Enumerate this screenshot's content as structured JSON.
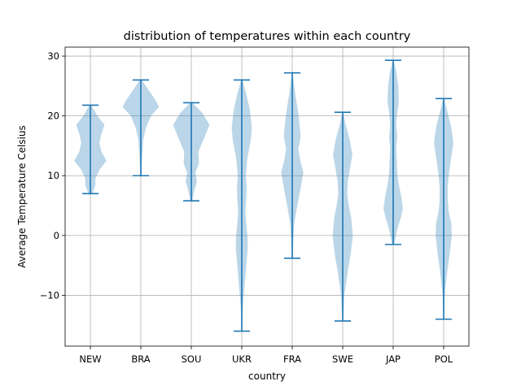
{
  "chart_data": {
    "type": "violin",
    "title": "distribution of temperatures within each country",
    "xlabel": "country",
    "ylabel": "Average Temperature Celsius",
    "ylim": [
      -18.5,
      31.5
    ],
    "yticks": [
      -10,
      0,
      10,
      20,
      30
    ],
    "ytick_labels": [
      "−10",
      "0",
      "10",
      "20",
      "30"
    ],
    "grid": true,
    "colors": {
      "body": "#1f77b4",
      "body_alpha": 0.3,
      "line": "#1f77b4",
      "grid": "#b0b0b0"
    },
    "categories": [
      "NEW",
      "BRA",
      "SOU",
      "UKR",
      "FRA",
      "SWE",
      "JAP",
      "POL"
    ],
    "series": [
      {
        "category": "NEW",
        "min": 7.0,
        "max": 21.8,
        "density": [
          [
            7.0,
            0.1
          ],
          [
            8.5,
            0.25
          ],
          [
            9.5,
            0.25
          ],
          [
            11.0,
            0.45
          ],
          [
            12.5,
            0.8
          ],
          [
            14.0,
            0.55
          ],
          [
            15.5,
            0.45
          ],
          [
            17.0,
            0.55
          ],
          [
            18.5,
            0.7
          ],
          [
            20.0,
            0.35
          ],
          [
            21.8,
            0.05
          ]
        ]
      },
      {
        "category": "BRA",
        "min": 10.0,
        "max": 26.0,
        "density": [
          [
            10.0,
            0.03
          ],
          [
            12.0,
            0.05
          ],
          [
            14.0,
            0.08
          ],
          [
            16.0,
            0.12
          ],
          [
            18.0,
            0.25
          ],
          [
            20.0,
            0.5
          ],
          [
            21.5,
            0.9
          ],
          [
            22.5,
            0.75
          ],
          [
            23.5,
            0.55
          ],
          [
            24.5,
            0.35
          ],
          [
            26.0,
            0.05
          ]
        ]
      },
      {
        "category": "SOU",
        "min": 5.8,
        "max": 22.2,
        "density": [
          [
            5.8,
            0.05
          ],
          [
            7.5,
            0.15
          ],
          [
            9.0,
            0.28
          ],
          [
            10.5,
            0.2
          ],
          [
            12.0,
            0.38
          ],
          [
            14.0,
            0.35
          ],
          [
            16.0,
            0.6
          ],
          [
            18.5,
            0.9
          ],
          [
            20.5,
            0.55
          ],
          [
            22.2,
            0.05
          ]
        ]
      },
      {
        "category": "UKR",
        "min": -16.0,
        "max": 26.0,
        "density": [
          [
            -16.0,
            0.02
          ],
          [
            -12.0,
            0.05
          ],
          [
            -8.0,
            0.15
          ],
          [
            -5.0,
            0.22
          ],
          [
            -2.0,
            0.3
          ],
          [
            0.0,
            0.28
          ],
          [
            2.0,
            0.22
          ],
          [
            4.0,
            0.18
          ],
          [
            6.0,
            0.22
          ],
          [
            8.0,
            0.24
          ],
          [
            10.0,
            0.2
          ],
          [
            13.0,
            0.28
          ],
          [
            16.0,
            0.45
          ],
          [
            18.0,
            0.5
          ],
          [
            21.0,
            0.4
          ],
          [
            24.0,
            0.2
          ],
          [
            26.0,
            0.03
          ]
        ]
      },
      {
        "category": "FRA",
        "min": -3.8,
        "max": 27.2,
        "density": [
          [
            -3.8,
            0.02
          ],
          [
            -1.0,
            0.05
          ],
          [
            2.0,
            0.1
          ],
          [
            5.0,
            0.25
          ],
          [
            8.0,
            0.42
          ],
          [
            10.5,
            0.55
          ],
          [
            12.5,
            0.4
          ],
          [
            14.5,
            0.3
          ],
          [
            16.5,
            0.42
          ],
          [
            18.0,
            0.38
          ],
          [
            20.5,
            0.3
          ],
          [
            23.0,
            0.18
          ],
          [
            25.0,
            0.1
          ],
          [
            27.2,
            0.02
          ]
        ]
      },
      {
        "category": "SWE",
        "min": -14.3,
        "max": 20.6,
        "density": [
          [
            -14.3,
            0.02
          ],
          [
            -10.0,
            0.08
          ],
          [
            -6.0,
            0.25
          ],
          [
            -3.0,
            0.4
          ],
          [
            0.0,
            0.5
          ],
          [
            3.0,
            0.42
          ],
          [
            5.0,
            0.3
          ],
          [
            7.0,
            0.22
          ],
          [
            9.0,
            0.25
          ],
          [
            11.0,
            0.35
          ],
          [
            13.5,
            0.48
          ],
          [
            16.0,
            0.35
          ],
          [
            18.5,
            0.15
          ],
          [
            20.6,
            0.02
          ]
        ]
      },
      {
        "category": "JAP",
        "min": -1.5,
        "max": 29.3,
        "density": [
          [
            -1.5,
            0.05
          ],
          [
            1.0,
            0.2
          ],
          [
            3.0,
            0.38
          ],
          [
            4.5,
            0.48
          ],
          [
            6.5,
            0.4
          ],
          [
            8.5,
            0.28
          ],
          [
            10.5,
            0.2
          ],
          [
            12.5,
            0.18
          ],
          [
            14.5,
            0.15
          ],
          [
            16.5,
            0.2
          ],
          [
            18.5,
            0.15
          ],
          [
            20.5,
            0.2
          ],
          [
            22.5,
            0.28
          ],
          [
            25.0,
            0.25
          ],
          [
            27.5,
            0.15
          ],
          [
            29.3,
            0.02
          ]
        ]
      },
      {
        "category": "POL",
        "min": -14.0,
        "max": 22.9,
        "density": [
          [
            -14.0,
            0.02
          ],
          [
            -10.0,
            0.05
          ],
          [
            -6.0,
            0.18
          ],
          [
            -3.0,
            0.3
          ],
          [
            0.0,
            0.4
          ],
          [
            2.0,
            0.38
          ],
          [
            4.0,
            0.25
          ],
          [
            6.0,
            0.2
          ],
          [
            8.0,
            0.2
          ],
          [
            10.0,
            0.25
          ],
          [
            12.5,
            0.35
          ],
          [
            15.5,
            0.48
          ],
          [
            18.0,
            0.38
          ],
          [
            20.5,
            0.2
          ],
          [
            22.9,
            0.02
          ]
        ]
      }
    ]
  }
}
